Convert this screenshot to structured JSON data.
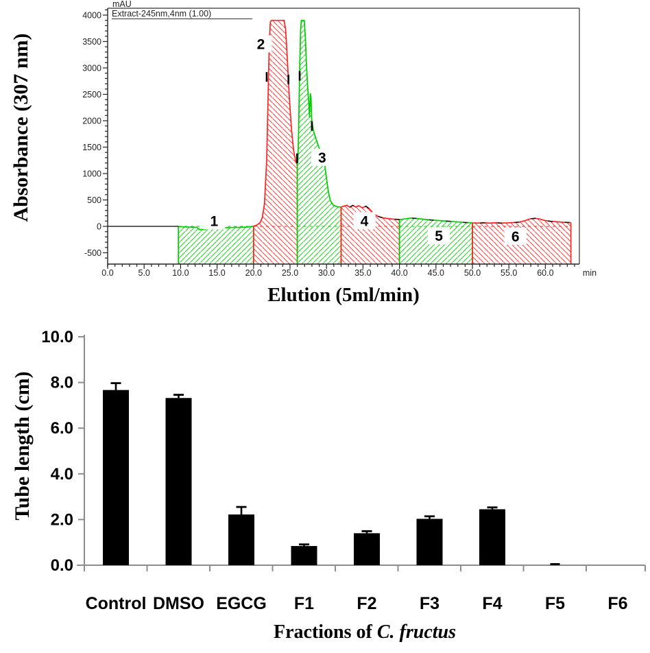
{
  "chart_data": [
    {
      "type": "area",
      "name": "hplc-chromatogram",
      "unit_label": "mAU",
      "trace_label": "Extract-245nm,4nm (1.00)",
      "ylabel": "Absorbance (307 nm)",
      "xlabel": "Elution (5ml/min)",
      "x_unit": "min",
      "xlim": [
        0,
        64.7
      ],
      "ylim": [
        -715,
        4155
      ],
      "x_tick_pos": [
        0,
        5,
        10,
        15,
        20,
        25,
        30,
        35,
        40,
        45,
        50,
        55,
        60
      ],
      "x_tick_labels": [
        "0.0",
        "5.0",
        "10.0",
        "15.0",
        "20.0",
        "25.0",
        "30.0",
        "35.0",
        "40.0",
        "45.0",
        "50.0",
        "55.0",
        "60.0"
      ],
      "y_tick_pos": [
        4000,
        3500,
        3000,
        2500,
        2000,
        1500,
        1000,
        500,
        0,
        -500
      ],
      "y_tick_labels": [
        "4000",
        "3500",
        "3000",
        "2500",
        "2000",
        "1500",
        "1000",
        "500",
        "0",
        "-500"
      ],
      "colors": {
        "green": "#00cc00",
        "red": "#ff2222",
        "trace": "#000000",
        "axis": "#222222"
      },
      "fractions": [
        {
          "label": "1",
          "start": 9.7,
          "end": 20,
          "color": "green",
          "label_pos": [
            14.6,
            100
          ]
        },
        {
          "label": "2",
          "start": 20,
          "end": 26,
          "color": "red",
          "label_pos": [
            21.0,
            3450
          ]
        },
        {
          "label": "3",
          "start": 26,
          "end": 32,
          "color": "green",
          "label_pos": [
            29.4,
            1300
          ]
        },
        {
          "label": "4",
          "start": 32,
          "end": 40,
          "color": "red",
          "label_pos": [
            35.2,
            100
          ]
        },
        {
          "label": "5",
          "start": 40,
          "end": 50,
          "color": "green",
          "label_pos": [
            45.4,
            -185
          ]
        },
        {
          "label": "6",
          "start": 50,
          "end": 63.5,
          "color": "red",
          "label_pos": [
            55.9,
            -195
          ]
        }
      ],
      "baseline_value": 0,
      "curve": [
        [
          0,
          0
        ],
        [
          4,
          0
        ],
        [
          8,
          0
        ],
        [
          9.7,
          0
        ],
        [
          10.2,
          -8
        ],
        [
          11.2,
          -14
        ],
        [
          12.2,
          -18
        ],
        [
          12.6,
          -60
        ],
        [
          13.4,
          -60
        ],
        [
          13.8,
          -22
        ],
        [
          15,
          -26
        ],
        [
          16.2,
          -26
        ],
        [
          17.2,
          -20
        ],
        [
          18.4,
          -18
        ],
        [
          19.4,
          -10
        ],
        [
          20,
          4
        ],
        [
          20.4,
          20
        ],
        [
          20.9,
          70
        ],
        [
          21.2,
          170
        ],
        [
          21.5,
          430
        ],
        [
          21.8,
          1250
        ],
        [
          22.0,
          2500
        ],
        [
          22.15,
          3450
        ],
        [
          22.3,
          3870
        ],
        [
          22.45,
          3900
        ],
        [
          24.2,
          3900
        ],
        [
          24.4,
          3720
        ],
        [
          24.6,
          3250
        ],
        [
          24.9,
          2450
        ],
        [
          25.2,
          1840
        ],
        [
          25.5,
          1430
        ],
        [
          25.8,
          1220
        ],
        [
          26,
          1160
        ],
        [
          26.08,
          1250
        ],
        [
          26.18,
          1800
        ],
        [
          26.3,
          2850
        ],
        [
          26.45,
          3720
        ],
        [
          26.55,
          3900
        ],
        [
          26.95,
          3900
        ],
        [
          27.1,
          3580
        ],
        [
          27.25,
          3080
        ],
        [
          27.4,
          2680
        ],
        [
          27.55,
          2380
        ],
        [
          27.68,
          2060
        ],
        [
          27.78,
          2520
        ],
        [
          27.88,
          2430
        ],
        [
          27.98,
          2000
        ],
        [
          28.25,
          1790
        ],
        [
          28.6,
          1640
        ],
        [
          29.0,
          1480
        ],
        [
          29.35,
          1310
        ],
        [
          29.65,
          1280
        ],
        [
          29.95,
          960
        ],
        [
          30.25,
          660
        ],
        [
          30.55,
          480
        ],
        [
          30.95,
          400
        ],
        [
          31.5,
          370
        ],
        [
          32,
          365
        ],
        [
          32.3,
          380
        ],
        [
          32.8,
          398
        ],
        [
          33.2,
          362
        ],
        [
          33.6,
          398
        ],
        [
          34.0,
          365
        ],
        [
          34.4,
          392
        ],
        [
          34.9,
          352
        ],
        [
          35.4,
          382
        ],
        [
          35.9,
          330
        ],
        [
          36.4,
          248
        ],
        [
          37.0,
          192
        ],
        [
          37.7,
          162
        ],
        [
          38.5,
          146
        ],
        [
          39.2,
          136
        ],
        [
          40,
          128
        ],
        [
          40.8,
          142
        ],
        [
          41.5,
          158
        ],
        [
          42.3,
          150
        ],
        [
          43.2,
          136
        ],
        [
          44.2,
          122
        ],
        [
          45.2,
          112
        ],
        [
          46.2,
          102
        ],
        [
          47.2,
          92
        ],
        [
          48.2,
          82
        ],
        [
          49.1,
          72
        ],
        [
          50,
          66
        ],
        [
          50.8,
          62
        ],
        [
          51.6,
          68
        ],
        [
          52.4,
          62
        ],
        [
          53.2,
          68
        ],
        [
          54.0,
          62
        ],
        [
          54.8,
          66
        ],
        [
          55.6,
          72
        ],
        [
          56.4,
          80
        ],
        [
          57.2,
          108
        ],
        [
          57.9,
          142
        ],
        [
          58.6,
          152
        ],
        [
          59.2,
          140
        ],
        [
          59.9,
          112
        ],
        [
          60.7,
          96
        ],
        [
          61.5,
          88
        ],
        [
          62.3,
          80
        ],
        [
          63.0,
          74
        ],
        [
          63.5,
          70
        ]
      ],
      "integration_marks": [
        [
          21.8,
          2830
        ],
        [
          24.78,
          2780
        ],
        [
          25.97,
          1290
        ],
        [
          26.32,
          2850
        ],
        [
          28.0,
          1900
        ],
        [
          29.5,
          1300
        ]
      ]
    },
    {
      "type": "bar",
      "name": "tube-length-bars",
      "ylabel": "Tube length (cm)",
      "xlabel_prefix": "Fractions of ",
      "xlabel_italic": "C. fructus",
      "ylim": [
        0,
        10
      ],
      "y_tick_pos": [
        10,
        8,
        6,
        4,
        2,
        0
      ],
      "y_tick_labels": [
        "10.0",
        "8.0",
        "6.0",
        "4.0",
        "2.0",
        "0.0"
      ],
      "categories": [
        "Control",
        "DMSO",
        "EGCG",
        "F1",
        "F2",
        "F3",
        "F4",
        "F5",
        "F6"
      ],
      "values": [
        7.67,
        7.32,
        2.22,
        0.84,
        1.4,
        2.03,
        2.45,
        0.05,
        0
      ],
      "errors": [
        0.3,
        0.14,
        0.33,
        0.07,
        0.09,
        0.11,
        0.08,
        0,
        0
      ],
      "bar_color": "#000000",
      "axis_color": "#8c8c8c",
      "grid": false,
      "legend": null
    }
  ]
}
